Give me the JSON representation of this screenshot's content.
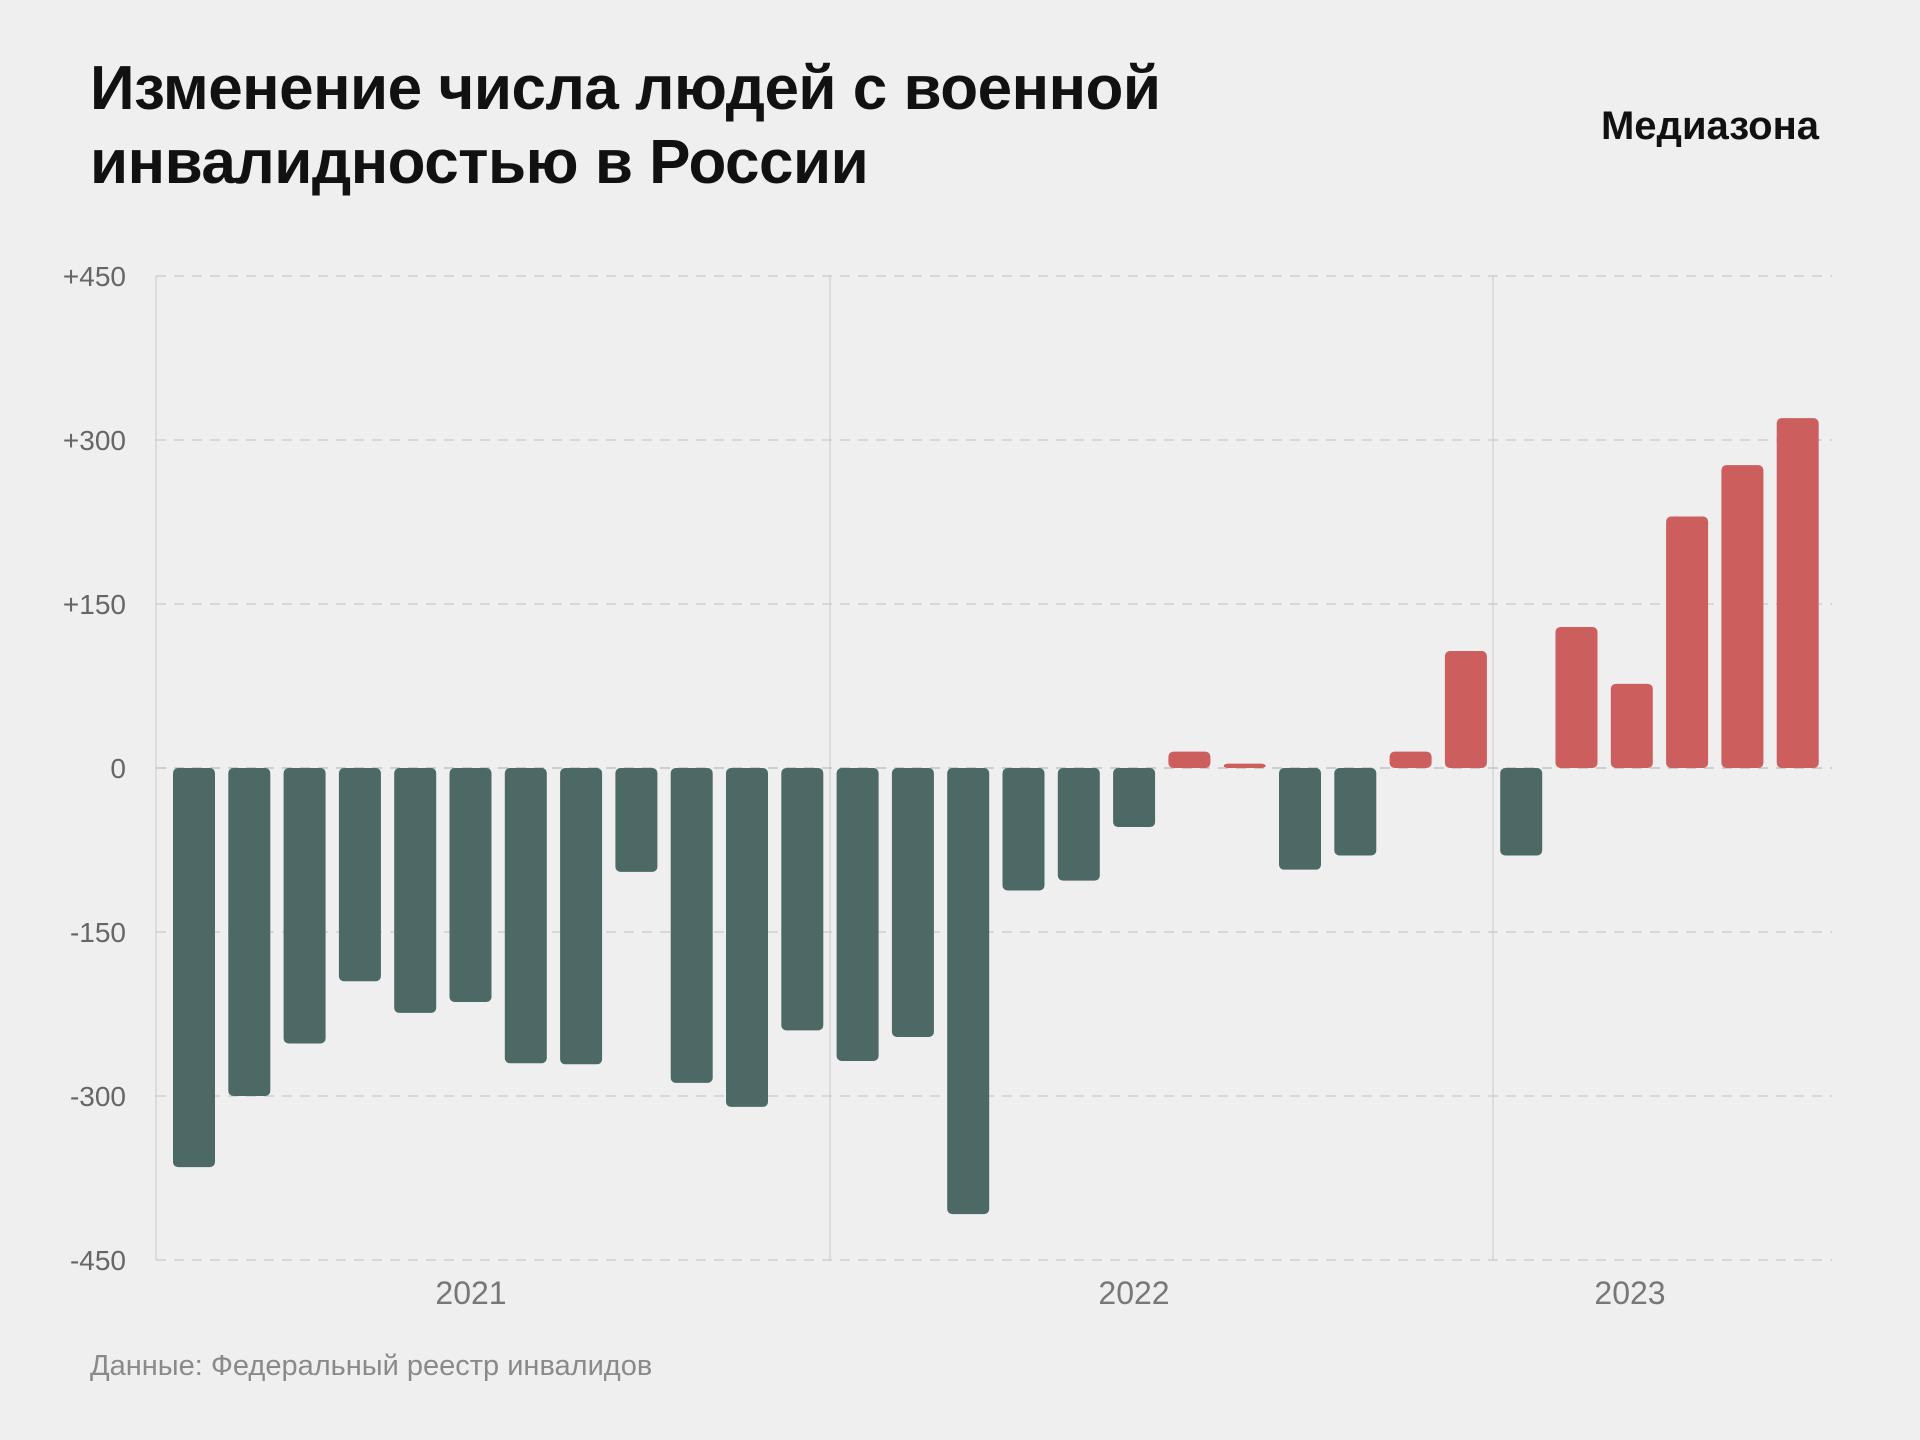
{
  "header": {
    "title": "Изменение числа людей с военной инвалидностью в России",
    "brand": "Медиазона"
  },
  "footer": {
    "source": "Данные: Федеральный реестр инвалидов"
  },
  "colors": {
    "positive": "#cc5e5e",
    "negative": "#4d6965",
    "background": "#efefef"
  },
  "chart_data": {
    "type": "bar",
    "title": "Изменение числа людей с военной инвалидностью в России",
    "xlabel": "",
    "ylabel": "",
    "ylim": [
      -450,
      450
    ],
    "yticks": [
      "+450",
      "+300",
      "+150",
      "0",
      "-150",
      "-300",
      "-450"
    ],
    "year_labels": [
      "2021",
      "2022",
      "2023"
    ],
    "grid": true,
    "values": [
      -365,
      -300,
      -252,
      -195,
      -224,
      -214,
      -270,
      -271,
      -95,
      -288,
      -310,
      -240,
      -268,
      -246,
      -408,
      -112,
      -103,
      -54,
      15,
      4,
      -93,
      -80,
      15,
      107,
      -80,
      129,
      77,
      230,
      277,
      320
    ]
  }
}
